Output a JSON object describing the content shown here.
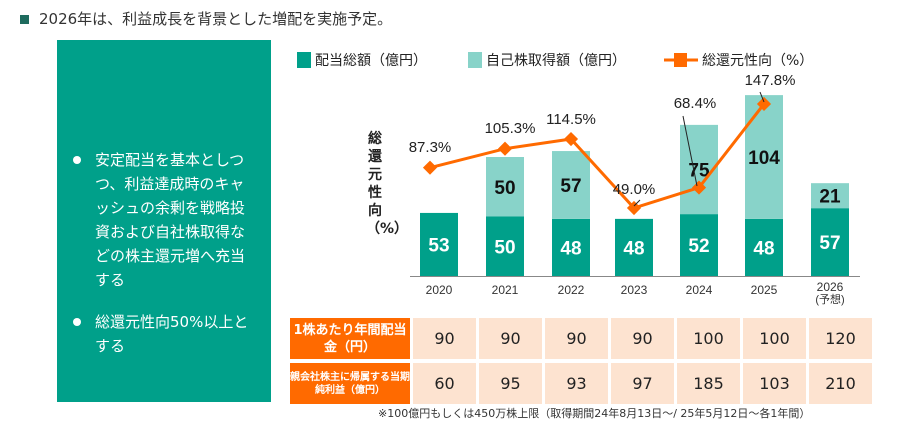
{
  "title": "2026年は、利益成長を背景とした増配を実施予定。",
  "bullets": [
    "安定配当を基本としつつ、利益達成時のキャッシュの余剰を戦略投資および自社株取得などの株主還元増へ充当する",
    "総還元性向50%以上とする"
  ],
  "chart_data": {
    "type": "bar+line",
    "categories": [
      "2020",
      "2021",
      "2022",
      "2023",
      "2024",
      "2025",
      "2026\n(予想)"
    ],
    "series": [
      {
        "name": "配当総額（億円）",
        "type": "stacked-bar",
        "color": "#00a08a",
        "values": [
          53,
          50,
          48,
          48,
          52,
          48,
          57
        ]
      },
      {
        "name": "自己株取得額（億円）",
        "type": "stacked-bar",
        "color": "#88d3c9",
        "values": [
          0,
          50,
          57,
          null,
          75,
          104,
          21
        ]
      },
      {
        "name": "総還元性向（%）",
        "type": "line",
        "color": "#ff6a00",
        "values": [
          87.3,
          105.3,
          114.5,
          49.0,
          68.4,
          147.8,
          null
        ],
        "labels": [
          "87.3%",
          "105.3%",
          "114.5%",
          "49.0%",
          "68.4%",
          "147.8%",
          ""
        ]
      }
    ],
    "ylabel": "総還元性向（%）",
    "legend": "top"
  },
  "table": {
    "rows": [
      {
        "header": "1株あたり年間配当金（円）",
        "values": [
          "90",
          "90",
          "90",
          "90",
          "100",
          "100",
          "120"
        ]
      },
      {
        "header": "親会社株主に帰属する当期純利益（億円）",
        "values": [
          "60",
          "95",
          "93",
          "97",
          "185",
          "103",
          "210"
        ]
      }
    ]
  },
  "note": "※100億円もしくは450万株上限（取得期間24年8月13日〜/ 25年5月12日〜各1年間）"
}
